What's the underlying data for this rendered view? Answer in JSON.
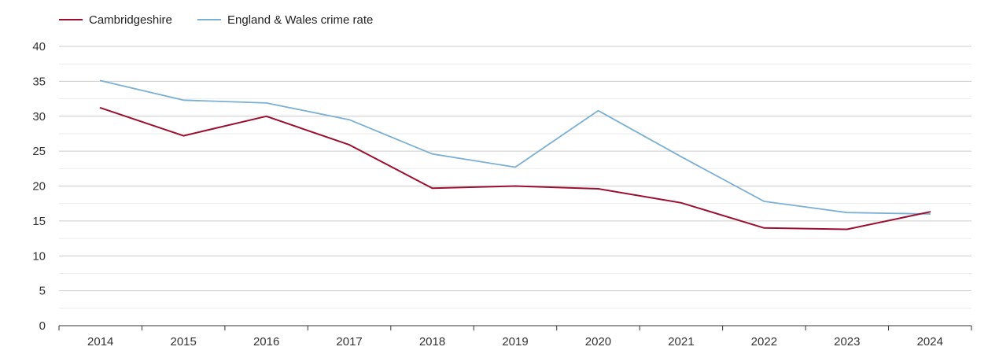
{
  "chart_data": {
    "type": "line",
    "categories": [
      "2014",
      "2015",
      "2016",
      "2017",
      "2018",
      "2019",
      "2020",
      "2021",
      "2022",
      "2023",
      "2024"
    ],
    "series": [
      {
        "name": "Cambridgeshire",
        "color": "#9b0e2e",
        "values": [
          31.2,
          27.2,
          30.0,
          25.9,
          19.7,
          20.0,
          19.6,
          17.6,
          14.0,
          13.8,
          16.3
        ]
      },
      {
        "name": "England & Wales crime rate",
        "color": "#7bb0d2",
        "values": [
          35.1,
          32.3,
          31.9,
          29.5,
          24.6,
          22.7,
          30.8,
          24.2,
          17.8,
          16.2,
          16.0
        ]
      }
    ],
    "yticks": [
      "0",
      "5",
      "10",
      "15",
      "20",
      "25",
      "30",
      "35",
      "40"
    ],
    "ylim": [
      0,
      40
    ],
    "grid": true,
    "legend_position": "top-left",
    "title": "",
    "xlabel": "",
    "ylabel": ""
  }
}
